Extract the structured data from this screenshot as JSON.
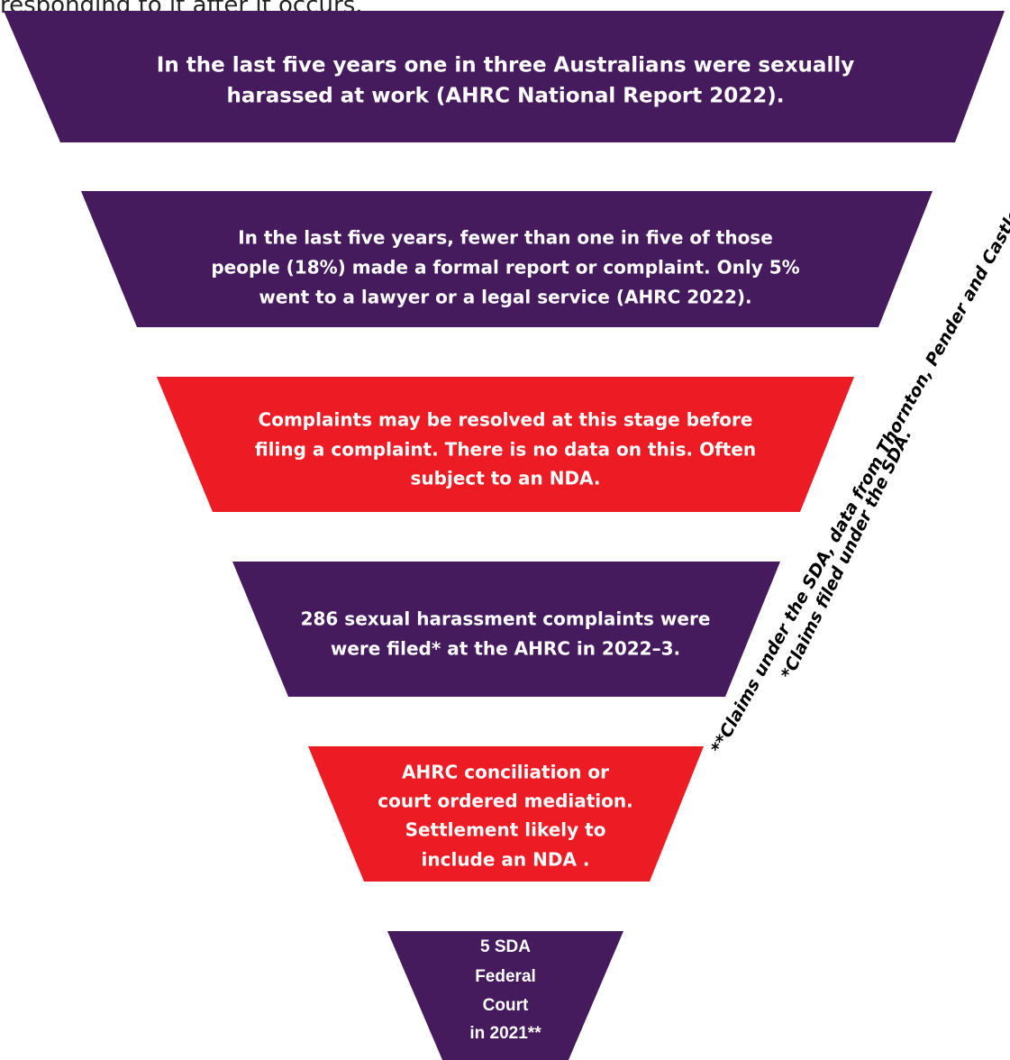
{
  "header": {
    "text": "responding to it after it occurs."
  },
  "stages": [
    {
      "lines": [
        "In the last five years one in three Australians were sexually",
        "harassed at work (AHRC National Report 2022)."
      ]
    },
    {
      "lines": [
        "In the last five years, fewer than one in five of those",
        "people (18%)  made a formal report or complaint. Only 5%",
        "went to a lawyer  or a legal service (AHRC 2022)."
      ]
    },
    {
      "lines": [
        "Complaints may be resolved at this stage before",
        "filing a complaint. There is no data on this. Often",
        "subject to an NDA."
      ]
    },
    {
      "lines": [
        "286 sexual harassment complaints were",
        "were filed* at the AHRC in 2022–3."
      ]
    },
    {
      "lines": [
        "AHRC conciliation or",
        "court ordered mediation.",
        "Settlement likely to",
        "include an NDA ."
      ]
    },
    {
      "lines": [
        "5 SDA",
        "Federal",
        "Court",
        "in 2021**"
      ]
    }
  ],
  "notes": [
    "*Claims filed under the SDA.",
    "**Claims under the SDA, data from Thornton, Pender and Castles."
  ]
}
